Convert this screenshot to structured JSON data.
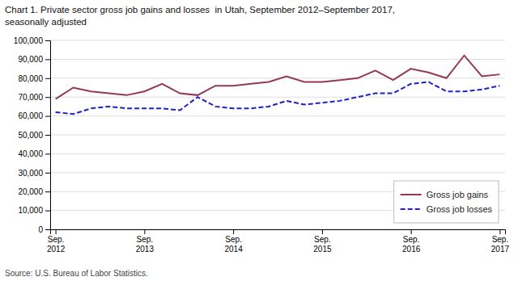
{
  "chart_data": {
    "type": "line",
    "title": "Chart 1. Private sector gross job gains and losses  in Utah, September 2012–September 2017,",
    "subtitle": "seasonally adjusted",
    "source": "Source: U.S. Bureau of Labor Statistics.",
    "categories": [
      "Sep.\n2012",
      null,
      null,
      null,
      null,
      "Sep.\n2013",
      null,
      null,
      null,
      null,
      "Sep.\n2014",
      null,
      null,
      null,
      null,
      "Sep.\n2015",
      null,
      null,
      null,
      null,
      "Sep.\n2016",
      null,
      null,
      null,
      null,
      "Sep.\n2017"
    ],
    "series": [
      {
        "name": "Gross job gains",
        "color": "#943855",
        "line_style": "solid",
        "values": [
          69000,
          75000,
          73000,
          72000,
          71000,
          73000,
          77000,
          72000,
          71000,
          76000,
          76000,
          77000,
          78000,
          81000,
          78000,
          78000,
          79000,
          80000,
          84000,
          79000,
          85000,
          83000,
          80000,
          92000,
          81000,
          82000
        ]
      },
      {
        "name": "Gross job losses",
        "color": "#1F1FCC",
        "line_style": "dashed",
        "values": [
          62000,
          61000,
          64000,
          65000,
          64000,
          64000,
          64000,
          63000,
          70000,
          65000,
          64000,
          64000,
          65000,
          68000,
          66000,
          67000,
          68000,
          70000,
          72000,
          72000,
          77000,
          78000,
          73000,
          73000,
          74000,
          76000
        ]
      }
    ],
    "ylim": [
      0,
      100000
    ],
    "yticks": [
      0,
      {
        "value": 10000,
        "label": "10,000"
      },
      {
        "value": 20000,
        "label": "20,000"
      },
      {
        "value": 30000,
        "label": "30,000"
      },
      {
        "value": 40000,
        "label": "40,000"
      },
      {
        "value": 50000,
        "label": "50,000"
      },
      {
        "value": 60000,
        "label": "60,000"
      },
      {
        "value": 70000,
        "label": "70,000"
      },
      {
        "value": 80000,
        "label": "80,000"
      },
      {
        "value": 90000,
        "label": "90,000"
      },
      {
        "value": 100000,
        "label": "100,000"
      }
    ],
    "grid": true,
    "legend": "lower right"
  }
}
